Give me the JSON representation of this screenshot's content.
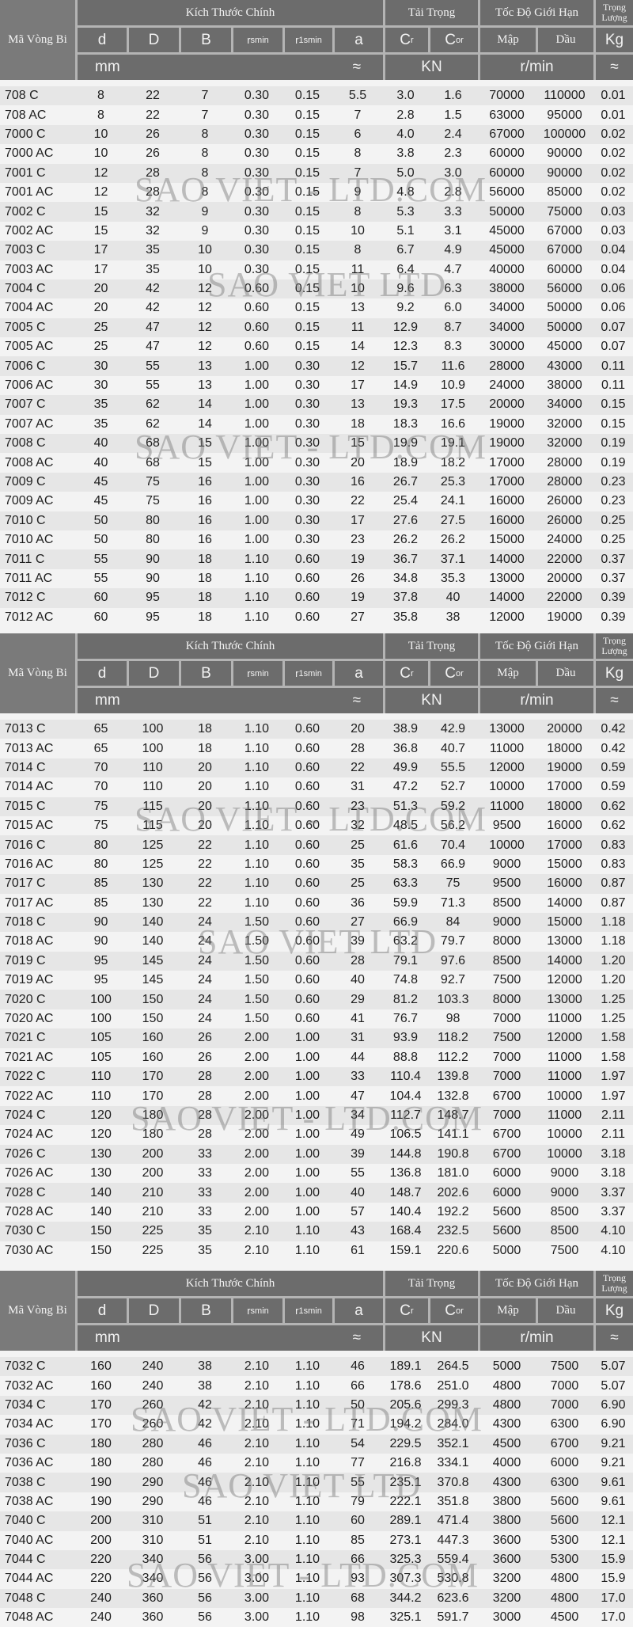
{
  "header": {
    "model": "Mã Vòng Bi",
    "main_dimensions": "Kích Thước Chính",
    "load": "Tải Trọng",
    "speed_limit": "Tốc Độ Giới Hạn",
    "weight_line1": "Trọng",
    "weight_line2": "Lượng",
    "d": "d",
    "D": "D",
    "B": "B",
    "rsmin_r": "r",
    "rsmin_sub": "smin",
    "r1smin_r": "r",
    "r1smin_sub": "1smin",
    "a": "a",
    "cr_c": "C",
    "cr_sub": "r",
    "cor_c": "C",
    "cor_sub": "or",
    "grease": "Mập",
    "oil": "Dầu",
    "kg": "Kg",
    "unit_mm": "mm",
    "approx": "≈",
    "unit_kn": "KN",
    "unit_rpm": "r/min",
    "approx_kg": "≈"
  },
  "watermarks": [
    "SAO VIET - LTD.COM",
    "SAO VIET LTD"
  ],
  "tables": [
    {
      "rows": [
        [
          "708 C",
          "8",
          "22",
          "7",
          "0.30",
          "0.15",
          "5.5",
          "3.0",
          "1.6",
          "70000",
          "110000",
          "0.01"
        ],
        [
          "708 AC",
          "8",
          "22",
          "7",
          "0.30",
          "0.15",
          "7",
          "2.8",
          "1.5",
          "63000",
          "95000",
          "0.01"
        ],
        [
          "7000 C",
          "10",
          "26",
          "8",
          "0.30",
          "0.15",
          "6",
          "4.0",
          "2.4",
          "67000",
          "100000",
          "0.02"
        ],
        [
          "7000 AC",
          "10",
          "26",
          "8",
          "0.30",
          "0.15",
          "8",
          "3.8",
          "2.3",
          "60000",
          "90000",
          "0.02"
        ],
        [
          "7001 C",
          "12",
          "28",
          "8",
          "0.30",
          "0.15",
          "7",
          "5.0",
          "3.0",
          "60000",
          "90000",
          "0.02"
        ],
        [
          "7001 AC",
          "12",
          "28",
          "8",
          "0.30",
          "0.15",
          "9",
          "4.8",
          "2.8",
          "56000",
          "85000",
          "0.02"
        ],
        [
          "7002 C",
          "15",
          "32",
          "9",
          "0.30",
          "0.15",
          "8",
          "5.3",
          "3.3",
          "50000",
          "75000",
          "0.03"
        ],
        [
          "7002 AC",
          "15",
          "32",
          "9",
          "0.30",
          "0.15",
          "10",
          "5.1",
          "3.1",
          "45000",
          "67000",
          "0.03"
        ],
        [
          "7003 C",
          "17",
          "35",
          "10",
          "0.30",
          "0.15",
          "8",
          "6.7",
          "4.9",
          "45000",
          "67000",
          "0.04"
        ],
        [
          "7003 AC",
          "17",
          "35",
          "10",
          "0.30",
          "0.15",
          "11",
          "6.4",
          "4.7",
          "40000",
          "60000",
          "0.04"
        ],
        [
          "7004 C",
          "20",
          "42",
          "12",
          "0.60",
          "0.15",
          "10",
          "9.6",
          "6.3",
          "38000",
          "56000",
          "0.06"
        ],
        [
          "7004 AC",
          "20",
          "42",
          "12",
          "0.60",
          "0.15",
          "13",
          "9.2",
          "6.0",
          "34000",
          "50000",
          "0.06"
        ],
        [
          "7005 C",
          "25",
          "47",
          "12",
          "0.60",
          "0.15",
          "11",
          "12.9",
          "8.7",
          "34000",
          "50000",
          "0.07"
        ],
        [
          "7005 AC",
          "25",
          "47",
          "12",
          "0.60",
          "0.15",
          "14",
          "12.3",
          "8.3",
          "30000",
          "45000",
          "0.07"
        ],
        [
          "7006 C",
          "30",
          "55",
          "13",
          "1.00",
          "0.30",
          "12",
          "15.7",
          "11.6",
          "28000",
          "43000",
          "0.11"
        ],
        [
          "7006 AC",
          "30",
          "55",
          "13",
          "1.00",
          "0.30",
          "17",
          "14.9",
          "10.9",
          "24000",
          "38000",
          "0.11"
        ],
        [
          "7007 C",
          "35",
          "62",
          "14",
          "1.00",
          "0.30",
          "13",
          "19.3",
          "17.5",
          "20000",
          "34000",
          "0.15"
        ],
        [
          "7007 AC",
          "35",
          "62",
          "14",
          "1.00",
          "0.30",
          "18",
          "18.3",
          "16.6",
          "19000",
          "32000",
          "0.15"
        ],
        [
          "7008 C",
          "40",
          "68",
          "15",
          "1.00",
          "0.30",
          "15",
          "19.9",
          "19.1",
          "19000",
          "32000",
          "0.19"
        ],
        [
          "7008 AC",
          "40",
          "68",
          "15",
          "1.00",
          "0.30",
          "20",
          "18.9",
          "18.2",
          "17000",
          "28000",
          "0.19"
        ],
        [
          "7009 C",
          "45",
          "75",
          "16",
          "1.00",
          "0.30",
          "16",
          "26.7",
          "25.3",
          "17000",
          "28000",
          "0.23"
        ],
        [
          "7009 AC",
          "45",
          "75",
          "16",
          "1.00",
          "0.30",
          "22",
          "25.4",
          "24.1",
          "16000",
          "26000",
          "0.23"
        ],
        [
          "7010 C",
          "50",
          "80",
          "16",
          "1.00",
          "0.30",
          "17",
          "27.6",
          "27.5",
          "16000",
          "26000",
          "0.25"
        ],
        [
          "7010 AC",
          "50",
          "80",
          "16",
          "1.00",
          "0.30",
          "23",
          "26.2",
          "26.2",
          "15000",
          "24000",
          "0.25"
        ],
        [
          "7011 C",
          "55",
          "90",
          "18",
          "1.10",
          "0.60",
          "19",
          "36.7",
          "37.1",
          "14000",
          "22000",
          "0.37"
        ],
        [
          "7011 AC",
          "55",
          "90",
          "18",
          "1.10",
          "0.60",
          "26",
          "34.8",
          "35.3",
          "13000",
          "20000",
          "0.37"
        ],
        [
          "7012 C",
          "60",
          "95",
          "18",
          "1.10",
          "0.60",
          "19",
          "37.8",
          "40",
          "14000",
          "22000",
          "0.39"
        ],
        [
          "7012 AC",
          "60",
          "95",
          "18",
          "1.10",
          "0.60",
          "27",
          "35.8",
          "38",
          "12000",
          "19000",
          "0.39"
        ]
      ]
    },
    {
      "rows": [
        [
          "7013 C",
          "65",
          "100",
          "18",
          "1.10",
          "0.60",
          "20",
          "38.9",
          "42.9",
          "13000",
          "20000",
          "0.42"
        ],
        [
          "7013 AC",
          "65",
          "100",
          "18",
          "1.10",
          "0.60",
          "28",
          "36.8",
          "40.7",
          "11000",
          "18000",
          "0.42"
        ],
        [
          "7014 C",
          "70",
          "110",
          "20",
          "1.10",
          "0.60",
          "22",
          "49.9",
          "55.5",
          "12000",
          "19000",
          "0.59"
        ],
        [
          "7014 AC",
          "70",
          "110",
          "20",
          "1.10",
          "0.60",
          "31",
          "47.2",
          "52.7",
          "10000",
          "17000",
          "0.59"
        ],
        [
          "7015 C",
          "75",
          "115",
          "20",
          "1.10",
          "0.60",
          "23",
          "51.3",
          "59.2",
          "11000",
          "18000",
          "0.62"
        ],
        [
          "7015 AC",
          "75",
          "115",
          "20",
          "1.10",
          "0.60",
          "32",
          "48.5",
          "56.2",
          "9500",
          "16000",
          "0.62"
        ],
        [
          "7016 C",
          "80",
          "125",
          "22",
          "1.10",
          "0.60",
          "25",
          "61.6",
          "70.4",
          "10000",
          "17000",
          "0.83"
        ],
        [
          "7016 AC",
          "80",
          "125",
          "22",
          "1.10",
          "0.60",
          "35",
          "58.3",
          "66.9",
          "9000",
          "15000",
          "0.83"
        ],
        [
          "7017 C",
          "85",
          "130",
          "22",
          "1.10",
          "0.60",
          "25",
          "63.3",
          "75",
          "9500",
          "16000",
          "0.87"
        ],
        [
          "7017 AC",
          "85",
          "130",
          "22",
          "1.10",
          "0.60",
          "36",
          "59.9",
          "71.3",
          "8500",
          "14000",
          "0.87"
        ],
        [
          "7018 C",
          "90",
          "140",
          "24",
          "1.50",
          "0.60",
          "27",
          "66.9",
          "84",
          "9000",
          "15000",
          "1.18"
        ],
        [
          "7018 AC",
          "90",
          "140",
          "24",
          "1.50",
          "0.60",
          "39",
          "63.2",
          "79.7",
          "8000",
          "13000",
          "1.18"
        ],
        [
          "7019 C",
          "95",
          "145",
          "24",
          "1.50",
          "0.60",
          "28",
          "79.1",
          "97.6",
          "8500",
          "14000",
          "1.20"
        ],
        [
          "7019 AC",
          "95",
          "145",
          "24",
          "1.50",
          "0.60",
          "40",
          "74.8",
          "92.7",
          "7500",
          "12000",
          "1.20"
        ],
        [
          "7020 C",
          "100",
          "150",
          "24",
          "1.50",
          "0.60",
          "29",
          "81.2",
          "103.3",
          "8000",
          "13000",
          "1.25"
        ],
        [
          "7020 AC",
          "100",
          "150",
          "24",
          "1.50",
          "0.60",
          "41",
          "76.7",
          "98",
          "7000",
          "11000",
          "1.25"
        ],
        [
          "7021 C",
          "105",
          "160",
          "26",
          "2.00",
          "1.00",
          "31",
          "93.9",
          "118.2",
          "7500",
          "12000",
          "1.58"
        ],
        [
          "7021 AC",
          "105",
          "160",
          "26",
          "2.00",
          "1.00",
          "44",
          "88.8",
          "112.2",
          "7000",
          "11000",
          "1.58"
        ],
        [
          "7022 C",
          "110",
          "170",
          "28",
          "2.00",
          "1.00",
          "33",
          "110.4",
          "139.8",
          "7000",
          "11000",
          "1.97"
        ],
        [
          "7022 AC",
          "110",
          "170",
          "28",
          "2.00",
          "1.00",
          "47",
          "104.4",
          "132.8",
          "6700",
          "10000",
          "1.97"
        ],
        [
          "7024 C",
          "120",
          "180",
          "28",
          "2.00",
          "1.00",
          "34",
          "112.7",
          "148.7",
          "7000",
          "11000",
          "2.11"
        ],
        [
          "7024 AC",
          "120",
          "180",
          "28",
          "2.00",
          "1.00",
          "49",
          "106.5",
          "141.1",
          "6700",
          "10000",
          "2.11"
        ],
        [
          "7026 C",
          "130",
          "200",
          "33",
          "2.00",
          "1.00",
          "39",
          "144.8",
          "190.8",
          "6700",
          "10000",
          "3.18"
        ],
        [
          "7026 AC",
          "130",
          "200",
          "33",
          "2.00",
          "1.00",
          "55",
          "136.8",
          "181.0",
          "6000",
          "9000",
          "3.18"
        ],
        [
          "7028 C",
          "140",
          "210",
          "33",
          "2.00",
          "1.00",
          "40",
          "148.7",
          "202.6",
          "6000",
          "9000",
          "3.37"
        ],
        [
          "7028 AC",
          "140",
          "210",
          "33",
          "2.00",
          "1.00",
          "57",
          "140.4",
          "192.2",
          "5600",
          "8500",
          "3.37"
        ],
        [
          "7030 C",
          "150",
          "225",
          "35",
          "2.10",
          "1.10",
          "43",
          "168.4",
          "232.5",
          "5600",
          "8500",
          "4.10"
        ],
        [
          "7030 AC",
          "150",
          "225",
          "35",
          "2.10",
          "1.10",
          "61",
          "159.1",
          "220.6",
          "5000",
          "7500",
          "4.10"
        ]
      ]
    },
    {
      "rows": [
        [
          "7032 C",
          "160",
          "240",
          "38",
          "2.10",
          "1.10",
          "46",
          "189.1",
          "264.5",
          "5000",
          "7500",
          "5.07"
        ],
        [
          "7032 AC",
          "160",
          "240",
          "38",
          "2.10",
          "1.10",
          "66",
          "178.6",
          "251.0",
          "4800",
          "7000",
          "5.07"
        ],
        [
          "7034 C",
          "170",
          "260",
          "42",
          "2.10",
          "1.10",
          "50",
          "205.6",
          "299.3",
          "4800",
          "7000",
          "6.90"
        ],
        [
          "7034 AC",
          "170",
          "260",
          "42",
          "2.10",
          "1.10",
          "71",
          "194.2",
          "284.0",
          "4300",
          "6300",
          "6.90"
        ],
        [
          "7036 C",
          "180",
          "280",
          "46",
          "2.10",
          "1.10",
          "54",
          "229.5",
          "352.1",
          "4500",
          "6700",
          "9.21"
        ],
        [
          "7036 AC",
          "180",
          "280",
          "46",
          "2.10",
          "1.10",
          "77",
          "216.8",
          "334.1",
          "4000",
          "6000",
          "9.21"
        ],
        [
          "7038 C",
          "190",
          "290",
          "46",
          "2.10",
          "1.10",
          "55",
          "235.1",
          "370.8",
          "4300",
          "6300",
          "9.61"
        ],
        [
          "7038 AC",
          "190",
          "290",
          "46",
          "2.10",
          "1.10",
          "79",
          "222.1",
          "351.8",
          "3800",
          "5600",
          "9.61"
        ],
        [
          "7040 C",
          "200",
          "310",
          "51",
          "2.10",
          "1.10",
          "60",
          "289.1",
          "471.4",
          "3800",
          "5600",
          "12.1"
        ],
        [
          "7040 AC",
          "200",
          "310",
          "51",
          "2.10",
          "1.10",
          "85",
          "273.1",
          "447.3",
          "3600",
          "5300",
          "12.1"
        ],
        [
          "7044 C",
          "220",
          "340",
          "56",
          "3.00",
          "1.10",
          "66",
          "325.3",
          "559.4",
          "3600",
          "5300",
          "15.9"
        ],
        [
          "7044 AC",
          "220",
          "340",
          "56",
          "3.00",
          "1.10",
          "93",
          "307.3",
          "530.8",
          "3200",
          "4800",
          "15.9"
        ],
        [
          "7048 C",
          "240",
          "360",
          "56",
          "3.00",
          "1.10",
          "68",
          "344.2",
          "623.6",
          "3200",
          "4800",
          "17.0"
        ],
        [
          "7048 AC",
          "240",
          "360",
          "56",
          "3.00",
          "1.10",
          "98",
          "325.1",
          "591.7",
          "3000",
          "4500",
          "17.0"
        ]
      ]
    }
  ]
}
